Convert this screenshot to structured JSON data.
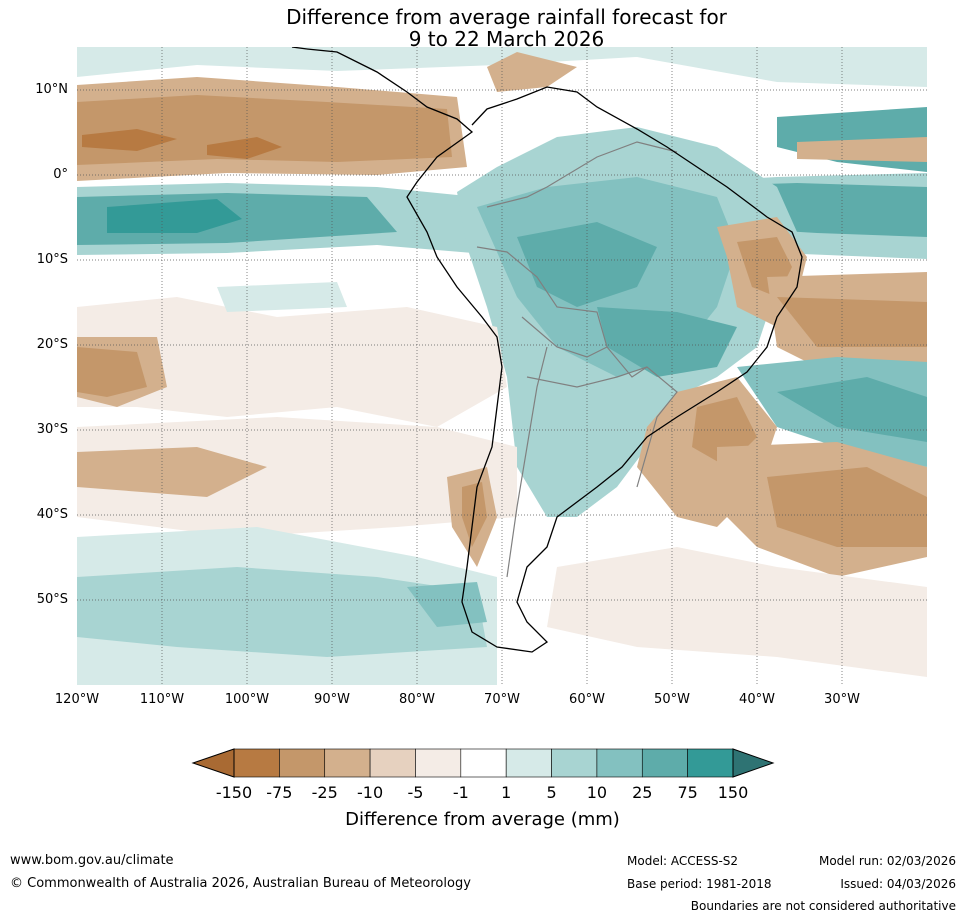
{
  "title": {
    "line1": "Difference from average rainfall forecast for",
    "line2": "9 to 22 March 2026"
  },
  "map": {
    "lat_labels": [
      "10°N",
      "0°",
      "10°S",
      "20°S",
      "30°S",
      "40°S",
      "50°S"
    ],
    "lon_labels": [
      "120°W",
      "110°W",
      "100°W",
      "90°W",
      "80°W",
      "70°W",
      "60°W",
      "50°W",
      "40°W",
      "30°W"
    ],
    "region": "South America",
    "grid_style": "dotted",
    "region_colors": {
      "ocean_base": "#ffffff",
      "coast_line": "#000000",
      "border_line": "#808080"
    }
  },
  "colorbar": {
    "ticks": [
      "-150",
      "-75",
      "-25",
      "-10",
      "-5",
      "-1",
      "1",
      "5",
      "10",
      "25",
      "75",
      "150"
    ],
    "colors": [
      "#a96a33",
      "#b77a42",
      "#c4976a",
      "#d3b08d",
      "#e6d1bf",
      "#f4ece6",
      "#ffffff",
      "#d6eae8",
      "#a8d4d2",
      "#83c1c0",
      "#5eacaa",
      "#339a97",
      "#2e7373"
    ],
    "label": "Difference from average (mm)"
  },
  "footer": {
    "website": "www.bom.gov.au/climate",
    "copyright": "© Commonwealth of Australia 2026, Australian Bureau of Meteorology",
    "model": "Model: ACCESS-S2",
    "base_period": "Base period: 1981-2018",
    "model_run": "Model run: 02/03/2026",
    "issued": "Issued: 04/03/2026",
    "disclaimer": "Boundaries are not considered authoritative"
  }
}
